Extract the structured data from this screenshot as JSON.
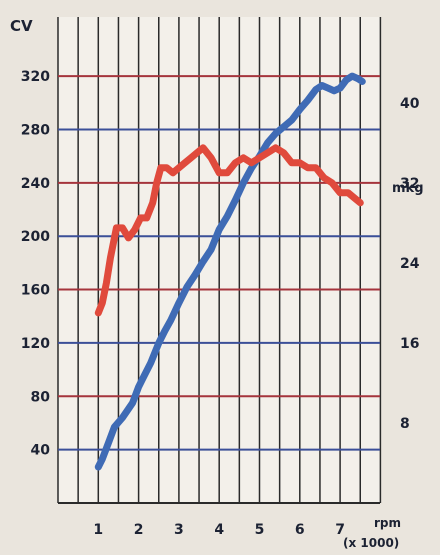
{
  "chart_data": {
    "type": "line",
    "title": "",
    "units": {
      "y_left": "CV",
      "y_right": "mkg",
      "x_top": "rpm",
      "x_bottom": "(x 1000)"
    },
    "x_ticks": [
      "1",
      "2",
      "3",
      "4",
      "5",
      "6",
      "7"
    ],
    "y_left_ticks": [
      "40",
      "80",
      "120",
      "160",
      "200",
      "240",
      "280",
      "320"
    ],
    "y_right_ticks": [
      "8",
      "16",
      "24",
      "32",
      "40"
    ],
    "xlim": [
      0,
      8
    ],
    "ylim_left": [
      0,
      360
    ],
    "ylim_right": [
      0,
      48
    ],
    "grid": true,
    "grid_colors": {
      "vertical": "#2a2a2a",
      "horizontal_blue": "#3b4f98",
      "horizontal_red": "#a5343c"
    },
    "series": [
      {
        "axis": "left",
        "color": "#3f6bb5",
        "x": [
          1.0,
          1.1,
          1.25,
          1.4,
          1.6,
          1.85,
          2.0,
          2.15,
          2.3,
          2.5,
          2.65,
          2.8,
          3.0,
          3.2,
          3.4,
          3.6,
          3.8,
          4.0,
          4.2,
          4.4,
          4.6,
          4.8,
          5.0,
          5.2,
          5.4,
          5.6,
          5.8,
          6.0,
          6.2,
          6.4,
          6.55,
          6.7,
          6.85,
          7.0,
          7.15,
          7.3,
          7.45,
          7.55
        ],
        "y": [
          27,
          33,
          45,
          57,
          64,
          75,
          87,
          96,
          105,
          120,
          129,
          137,
          150,
          162,
          171,
          181,
          190,
          205,
          215,
          227,
          240,
          251,
          260,
          270,
          277,
          282,
          287,
          295,
          302,
          310,
          313,
          311,
          309,
          311,
          317,
          320,
          318,
          316
        ]
      },
      {
        "axis": "right",
        "color": "#e04a3c",
        "x": [
          1.0,
          1.1,
          1.2,
          1.3,
          1.45,
          1.6,
          1.75,
          1.9,
          2.05,
          2.2,
          2.35,
          2.45,
          2.55,
          2.7,
          2.85,
          3.0,
          3.15,
          3.3,
          3.45,
          3.6,
          3.8,
          4.0,
          4.2,
          4.4,
          4.6,
          4.8,
          5.0,
          5.2,
          5.4,
          5.6,
          5.8,
          6.0,
          6.2,
          6.4,
          6.6,
          6.8,
          7.0,
          7.2,
          7.35,
          7.5
        ],
        "y": [
          19,
          20,
          22,
          24.5,
          27.5,
          27.5,
          26.5,
          27.3,
          28.5,
          28.5,
          30,
          32,
          33.5,
          33.5,
          33,
          33.5,
          34,
          34.5,
          35,
          35.5,
          34.5,
          33,
          33,
          34,
          34.5,
          34,
          34.5,
          35,
          35.5,
          35,
          34,
          34,
          33.5,
          33.5,
          32.5,
          32,
          31,
          31,
          30.5,
          30
        ]
      }
    ]
  }
}
